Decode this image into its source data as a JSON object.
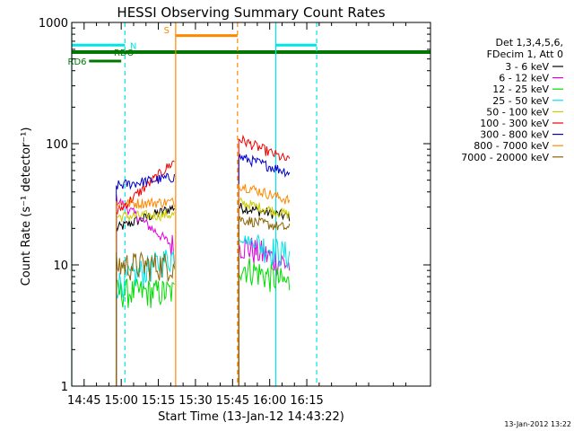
{
  "chart_data": {
    "type": "line",
    "title": "HESSI Observing Summary Count Rates",
    "xlabel": "Start Time (13-Jan-12 14:43:22)",
    "ylabel": "Count Rate (s⁻¹ detector⁻¹)",
    "ylog": true,
    "ylim": [
      1,
      1000
    ],
    "xlim_minutes": [
      880,
      1025
    ],
    "x_ticks": [
      {
        "minute": 885,
        "label": "14:45"
      },
      {
        "minute": 900,
        "label": "15:00"
      },
      {
        "minute": 915,
        "label": "15:15"
      },
      {
        "minute": 930,
        "label": "15:30"
      },
      {
        "minute": 945,
        "label": "15:45"
      },
      {
        "minute": 960,
        "label": "16:00"
      },
      {
        "minute": 975,
        "label": "16:15"
      }
    ],
    "y_ticks": [
      {
        "value": 1,
        "label": "1"
      },
      {
        "value": 10,
        "label": "10"
      },
      {
        "value": 100,
        "label": "100"
      },
      {
        "value": 1000,
        "label": "1000"
      }
    ],
    "legend": {
      "placement": "right",
      "header": [
        "Det 1,3,4,5,6,",
        "FDecim 1, Att 0"
      ]
    },
    "series": [
      {
        "name": "3 - 6 keV",
        "color": "#000000",
        "seg1_start": 20,
        "seg1_end": 30,
        "seg2_start": 30,
        "seg2_end": 25
      },
      {
        "name": "6 - 12 keV",
        "color": "#e000e0",
        "seg1_start": 35,
        "seg1_end": 14,
        "seg2_start": 15,
        "seg2_end": 10
      },
      {
        "name": "12 - 25 keV",
        "color": "#00dd00",
        "seg1_start": 6,
        "seg1_end": 6,
        "seg2_start": 10,
        "seg2_end": 7
      },
      {
        "name": "25 - 50 keV",
        "color": "#00e5e5",
        "seg1_start": 7,
        "seg1_end": 12,
        "seg2_start": 17,
        "seg2_end": 12
      },
      {
        "name": "50 - 100 keV",
        "color": "#cccc00",
        "seg1_start": 25,
        "seg1_end": 26,
        "seg2_start": 33,
        "seg2_end": 26
      },
      {
        "name": "100 - 300 keV",
        "color": "#ee0000",
        "seg1_start": 27,
        "seg1_end": 72,
        "seg2_start": 110,
        "seg2_end": 72
      },
      {
        "name": "300 - 800 keV",
        "color": "#0000cc",
        "seg1_start": 45,
        "seg1_end": 53,
        "seg2_start": 78,
        "seg2_end": 58
      },
      {
        "name": "800 - 7000 keV",
        "color": "#ff8800",
        "seg1_start": 32,
        "seg1_end": 33,
        "seg2_start": 46,
        "seg2_end": 34
      },
      {
        "name": "7000 - 20000 keV",
        "color": "#8b6508",
        "seg1_start": 10,
        "seg1_end": 10,
        "seg2_start": 24,
        "seg2_end": 20
      }
    ],
    "segments_minutes": [
      [
        898,
        921.5
      ],
      [
        947.5,
        968
      ]
    ],
    "flags": [
      {
        "label": "N",
        "color": "#00e5e5",
        "value": 650,
        "bars_minutes": [
          [
            880,
            901.5
          ],
          [
            962.5,
            979
          ]
        ]
      },
      {
        "label": "S",
        "color": "#ff8800",
        "value": 780,
        "bars_minutes": [
          [
            922,
            947
          ]
        ]
      },
      {
        "label": "RDO",
        "color": "#007700",
        "value": 570,
        "bars_minutes": [
          [
            880,
            1025
          ]
        ]
      },
      {
        "label": "RD6",
        "color": "#007700",
        "value": 480,
        "bars_minutes": [
          [
            887,
            900
          ]
        ]
      }
    ],
    "vlines_minutes": [
      {
        "minute": 880,
        "color": "#00e5e5",
        "dash": false
      },
      {
        "minute": 901.5,
        "color": "#00e5e5",
        "dash": true
      },
      {
        "minute": 922,
        "color": "#ff8800",
        "dash": false
      },
      {
        "minute": 947,
        "color": "#ff8800",
        "dash": true
      },
      {
        "minute": 962.5,
        "color": "#00e5e5",
        "dash": false
      },
      {
        "minute": 979,
        "color": "#00e5e5",
        "dash": true
      }
    ]
  },
  "footer_date": "13-Jan-2012 13:22"
}
